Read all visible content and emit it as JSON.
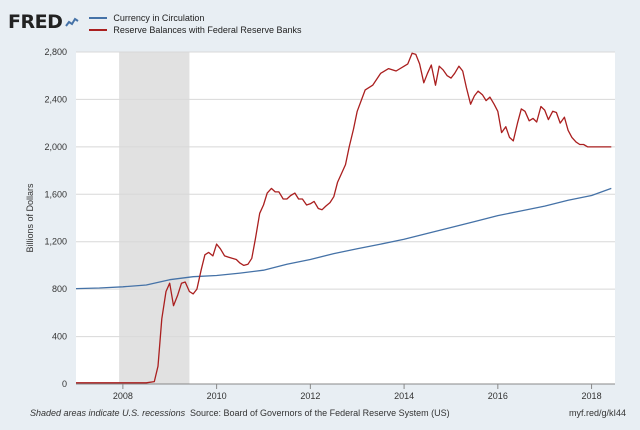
{
  "brand": "FRED",
  "legend": [
    {
      "label": "Currency in Circulation",
      "color": "#4572a7"
    },
    {
      "label": "Reserve Balances with Federal Reserve Banks",
      "color": "#aa1f1f"
    }
  ],
  "footer": {
    "note": "Shaded areas indicate U.S. recessions",
    "source": "Source: Board of Governors of the Federal Reserve System (US)",
    "url": "myf.red/g/kI44"
  },
  "chart_data": {
    "type": "line",
    "title": "",
    "xlabel": "",
    "ylabel": "Billions of Dollars",
    "xlim": [
      2007.0,
      2018.5
    ],
    "ylim": [
      0,
      2800
    ],
    "y_ticks": [
      0,
      400,
      800,
      1200,
      1600,
      2000,
      2400,
      2800
    ],
    "y_tick_labels": [
      "0",
      "400",
      "800",
      "1,200",
      "1,600",
      "2,000",
      "2,400",
      "2,800"
    ],
    "x_ticks": [
      2008,
      2010,
      2012,
      2014,
      2016,
      2018
    ],
    "x_tick_labels": [
      "2008",
      "2010",
      "2012",
      "2014",
      "2016",
      "2018"
    ],
    "grid": "horizontal",
    "recessions": [
      [
        2007.92,
        2009.42
      ]
    ],
    "series": [
      {
        "name": "Currency in Circulation",
        "color": "#4572a7",
        "x": [
          2007.0,
          2007.5,
          2008.0,
          2008.5,
          2009.0,
          2009.5,
          2010.0,
          2010.5,
          2011.0,
          2011.5,
          2012.0,
          2012.5,
          2013.0,
          2013.5,
          2014.0,
          2014.5,
          2015.0,
          2015.5,
          2016.0,
          2016.5,
          2017.0,
          2017.5,
          2018.0,
          2018.42
        ],
        "y": [
          805,
          810,
          820,
          835,
          880,
          905,
          915,
          935,
          960,
          1010,
          1050,
          1100,
          1140,
          1180,
          1220,
          1270,
          1320,
          1370,
          1420,
          1460,
          1500,
          1550,
          1590,
          1650
        ]
      },
      {
        "name": "Reserve Balances with Federal Reserve Banks",
        "color": "#aa1f1f",
        "x": [
          2007.0,
          2007.5,
          2008.0,
          2008.5,
          2008.67,
          2008.75,
          2008.83,
          2008.92,
          2009.0,
          2009.08,
          2009.17,
          2009.25,
          2009.33,
          2009.42,
          2009.5,
          2009.58,
          2009.67,
          2009.75,
          2009.83,
          2009.92,
          2010.0,
          2010.08,
          2010.17,
          2010.25,
          2010.33,
          2010.42,
          2010.5,
          2010.58,
          2010.67,
          2010.75,
          2010.83,
          2010.92,
          2011.0,
          2011.08,
          2011.17,
          2011.25,
          2011.33,
          2011.42,
          2011.5,
          2011.58,
          2011.67,
          2011.75,
          2011.83,
          2011.92,
          2012.0,
          2012.08,
          2012.17,
          2012.25,
          2012.33,
          2012.42,
          2012.5,
          2012.58,
          2012.67,
          2012.75,
          2012.83,
          2012.92,
          2013.0,
          2013.17,
          2013.33,
          2013.5,
          2013.67,
          2013.83,
          2014.0,
          2014.08,
          2014.17,
          2014.25,
          2014.33,
          2014.42,
          2014.5,
          2014.58,
          2014.67,
          2014.75,
          2014.83,
          2014.92,
          2015.0,
          2015.08,
          2015.17,
          2015.25,
          2015.33,
          2015.42,
          2015.5,
          2015.58,
          2015.67,
          2015.75,
          2015.83,
          2015.92,
          2016.0,
          2016.08,
          2016.17,
          2016.25,
          2016.33,
          2016.42,
          2016.5,
          2016.58,
          2016.67,
          2016.75,
          2016.83,
          2016.92,
          2017.0,
          2017.08,
          2017.17,
          2017.25,
          2017.33,
          2017.42,
          2017.5,
          2017.58,
          2017.67,
          2017.75,
          2017.83,
          2017.92,
          2018.0,
          2018.08,
          2018.17,
          2018.25,
          2018.33,
          2018.42
        ],
        "y": [
          10,
          10,
          10,
          10,
          20,
          150,
          550,
          780,
          850,
          660,
          750,
          850,
          860,
          780,
          760,
          800,
          960,
          1090,
          1110,
          1080,
          1180,
          1140,
          1080,
          1070,
          1060,
          1050,
          1020,
          1000,
          1010,
          1060,
          1230,
          1440,
          1510,
          1610,
          1650,
          1620,
          1620,
          1560,
          1560,
          1590,
          1610,
          1560,
          1560,
          1510,
          1520,
          1540,
          1480,
          1470,
          1500,
          1530,
          1580,
          1700,
          1780,
          1850,
          2000,
          2150,
          2300,
          2480,
          2520,
          2620,
          2660,
          2640,
          2680,
          2700,
          2790,
          2780,
          2700,
          2540,
          2620,
          2690,
          2520,
          2680,
          2650,
          2600,
          2580,
          2620,
          2680,
          2640,
          2500,
          2360,
          2430,
          2470,
          2440,
          2390,
          2420,
          2360,
          2300,
          2120,
          2170,
          2080,
          2050,
          2200,
          2320,
          2300,
          2220,
          2240,
          2210,
          2340,
          2310,
          2230,
          2300,
          2290,
          2200,
          2250,
          2140,
          2080,
          2040,
          2020,
          2020,
          2000,
          2000,
          2000,
          2000,
          2000,
          2000,
          2000
        ],
        "y_note": ""
      }
    ]
  }
}
